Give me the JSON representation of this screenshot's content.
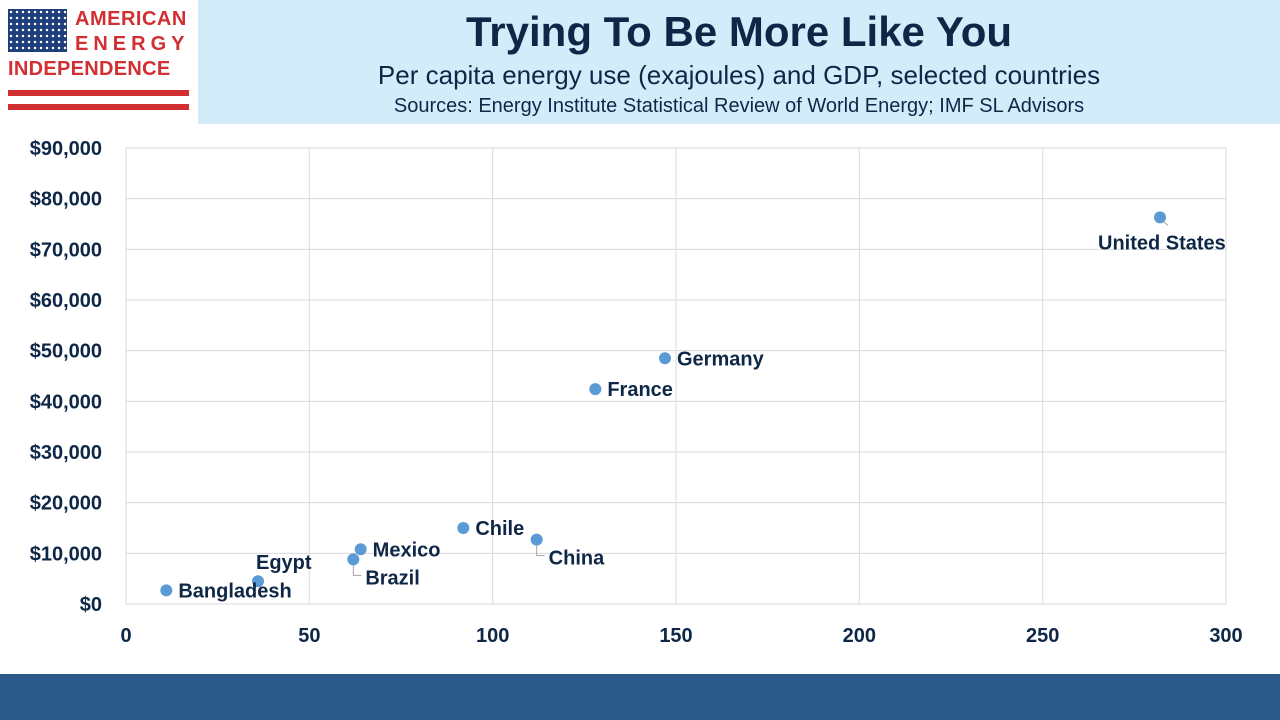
{
  "logo": {
    "line1": "AMERICAN",
    "line2": "ENERGY",
    "line3": "INDEPENDENCE"
  },
  "header": {
    "title": "Trying To Be More Like You",
    "subtitle": "Per capita energy use (exajoules) and GDP, selected countries",
    "sources": "Sources: Energy Institute Statistical Review of World Energy; IMF SL Advisors"
  },
  "colors": {
    "header_bg": "#d4ecfa",
    "title_text": "#0e2747",
    "point": "#5b9bd5",
    "footer": "#2b5988",
    "logo_red": "#d22f33",
    "logo_blue": "#1f3f7c"
  },
  "chart_data": {
    "type": "scatter",
    "xlim": [
      0,
      300
    ],
    "ylim": [
      0,
      90000
    ],
    "x_ticks": [
      0,
      50,
      100,
      150,
      200,
      250,
      300
    ],
    "x_tick_labels": [
      "0",
      "50",
      "100",
      "150",
      "200",
      "250",
      "300"
    ],
    "y_ticks": [
      0,
      10000,
      20000,
      30000,
      40000,
      50000,
      60000,
      70000,
      80000,
      90000
    ],
    "y_tick_labels": [
      "$0",
      "$10,000",
      "$20,000",
      "$30,000",
      "$40,000",
      "$50,000",
      "$60,000",
      "$70,000",
      "$80,000",
      "$90,000"
    ],
    "grid": true,
    "points": [
      {
        "label": "United States",
        "x": 282,
        "y": 76300,
        "label_pos": "below-right"
      },
      {
        "label": "Germany",
        "x": 147,
        "y": 48500,
        "label_pos": "right"
      },
      {
        "label": "France",
        "x": 128,
        "y": 42400,
        "label_pos": "right"
      },
      {
        "label": "Chile",
        "x": 92,
        "y": 15000,
        "label_pos": "right"
      },
      {
        "label": "China",
        "x": 112,
        "y": 12700,
        "label_pos": "below-right"
      },
      {
        "label": "Mexico",
        "x": 64,
        "y": 10800,
        "label_pos": "right"
      },
      {
        "label": "Brazil",
        "x": 62,
        "y": 8800,
        "label_pos": "below-right"
      },
      {
        "label": "Egypt",
        "x": 36,
        "y": 4500,
        "label_pos": "above-right"
      },
      {
        "label": "Bangladesh",
        "x": 11,
        "y": 2700,
        "label_pos": "right"
      }
    ]
  }
}
